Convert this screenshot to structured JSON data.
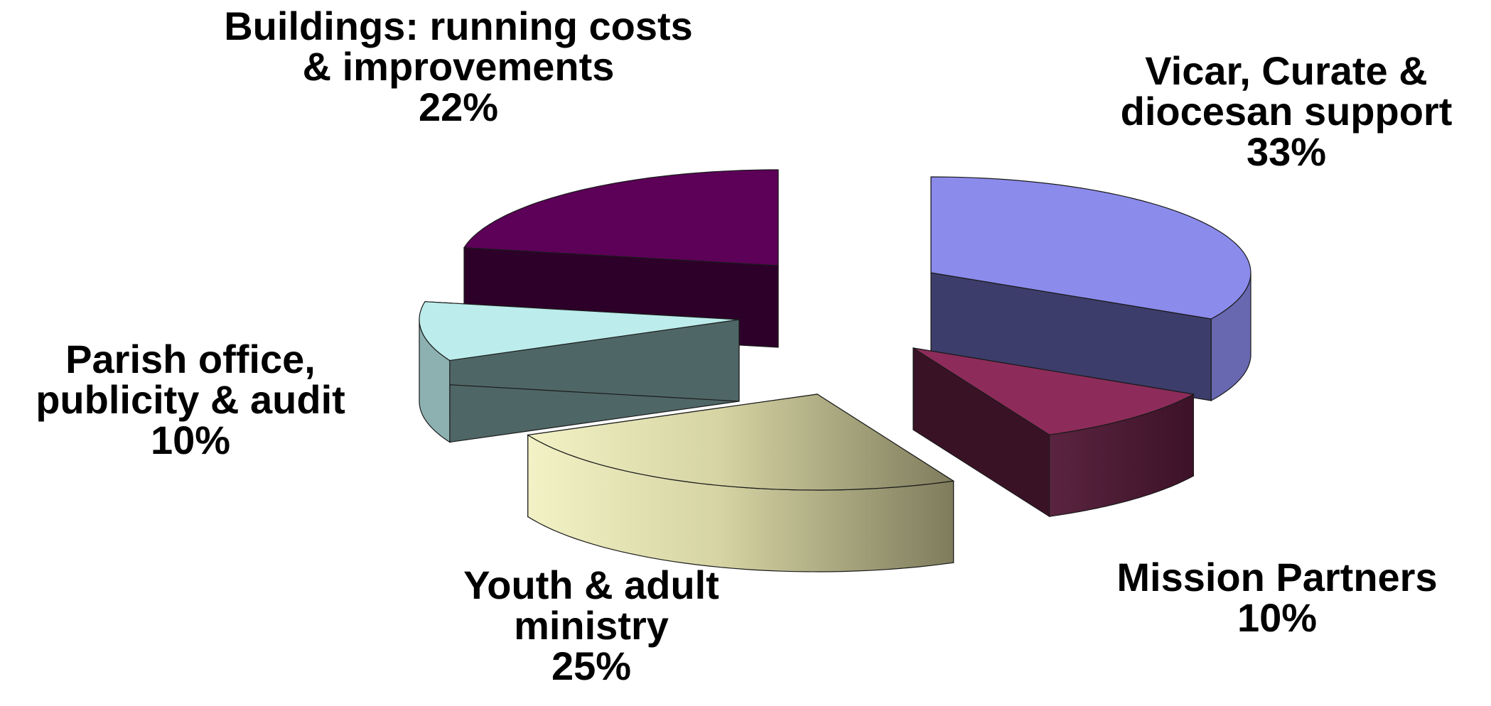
{
  "chart_data": {
    "type": "pie",
    "style": "3d-exploded",
    "title": "",
    "slices": [
      {
        "label_lines": [
          "Vicar, Curate &",
          "diocesan support"
        ],
        "value_label": "33%",
        "value": 33,
        "color": "#8b8bec"
      },
      {
        "label_lines": [
          "Mission Partners"
        ],
        "value_label": "10%",
        "value": 10,
        "color": "#8d2c5a"
      },
      {
        "label_lines": [
          "Youth & adult",
          "ministry"
        ],
        "value_label": "25%",
        "value": 25,
        "color": "#eeeebb"
      },
      {
        "label_lines": [
          "Parish office,",
          "publicity & audit"
        ],
        "value_label": "10%",
        "value": 10,
        "color": "#bcecec"
      },
      {
        "label_lines": [
          "Buildings: running costs",
          "& improvements"
        ],
        "value_label": "22%",
        "value": 22,
        "color": "#5c0058"
      }
    ]
  }
}
